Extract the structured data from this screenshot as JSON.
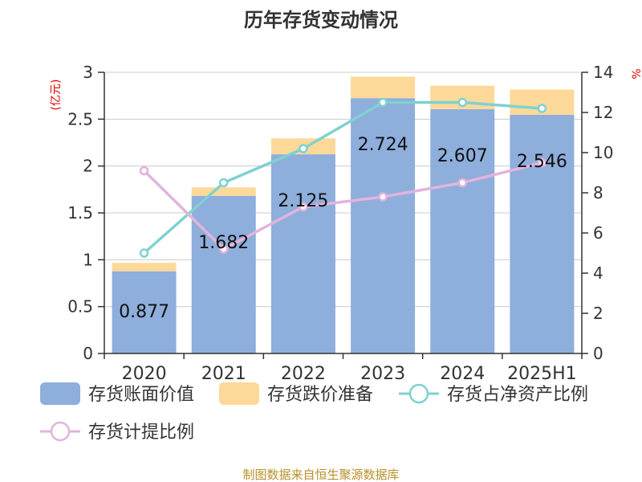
{
  "title": "历年存货变动情况",
  "source": "制图数据来自恒生聚源数据库",
  "left_axis_unit": "(亿元)",
  "right_axis_unit": "%",
  "chart_data": {
    "type": "bar",
    "categories": [
      "2020",
      "2021",
      "2022",
      "2023",
      "2024",
      "2025H1"
    ],
    "left_axis": {
      "ylim": [
        0,
        3
      ],
      "ticks": [
        "0",
        "0.5",
        "1",
        "1.5",
        "2",
        "2.5",
        "3"
      ]
    },
    "right_axis": {
      "ylim": [
        0,
        14
      ],
      "ticks": [
        "0",
        "2",
        "4",
        "6",
        "8",
        "10",
        "12",
        "14"
      ]
    },
    "grid": true,
    "legend_position": "bottom",
    "series": [
      {
        "name": "存货账面价值",
        "kind": "bar",
        "axis": "left",
        "color": "#8eaedb",
        "values": [
          0.877,
          1.682,
          2.125,
          2.724,
          2.607,
          2.546
        ],
        "labels": [
          "0.877",
          "1.682",
          "2.125",
          "2.724",
          "2.607",
          "2.546"
        ]
      },
      {
        "name": "存货跌价准备",
        "kind": "bar-stacked",
        "axis": "left",
        "color": "#fcd999",
        "values": [
          0.09,
          0.09,
          0.17,
          0.23,
          0.25,
          0.27
        ]
      },
      {
        "name": "存货占净资产比例",
        "kind": "line",
        "axis": "right",
        "color": "#7fd1d1",
        "values": [
          5.0,
          8.5,
          10.2,
          12.5,
          12.5,
          12.2
        ]
      },
      {
        "name": "存货计提比例",
        "kind": "line",
        "axis": "right",
        "color": "#e3b3dc",
        "values": [
          9.1,
          5.2,
          7.3,
          7.8,
          8.5,
          9.5
        ]
      }
    ]
  }
}
